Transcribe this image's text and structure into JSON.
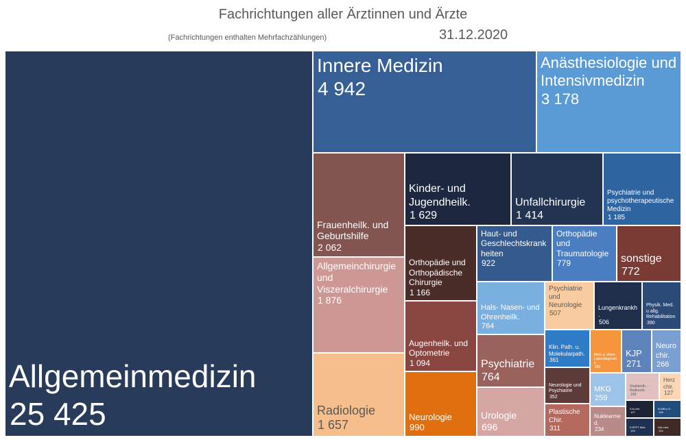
{
  "chart_data": {
    "type": "treemap",
    "title": "Fachrichtungen aller Ärztinnen und Ärzte",
    "subtitle": "(Fachrichtungen enthalten Mehrfachzählungen)",
    "date": "31.12.2020",
    "tiles": [
      {
        "label": "Allgemeinmedizin",
        "value": "25 425",
        "color": "#293b5b"
      },
      {
        "label": "Innere Medizin",
        "value": "4 942",
        "color": "#355f95"
      },
      {
        "label": "Anästhesiologie und Intensivmedizin",
        "value": "3 178",
        "color": "#5b9bd5"
      },
      {
        "label": "Frauenheilk. und Geburtshilfe",
        "value": "2 062",
        "color": "#835450"
      },
      {
        "label": "Allgemeinchirurgie und Viszeralchirurgie",
        "value": "1 876",
        "color": "#cd9894"
      },
      {
        "label": "Radiologie",
        "value": "1 657",
        "color": "#f5be8a"
      },
      {
        "label": "Kinder- und Jugendheilk.",
        "value": "1 629",
        "color": "#1d2840"
      },
      {
        "label": "Unfallchirurgie",
        "value": "1 414",
        "color": "#223452"
      },
      {
        "label": "Psychiatrie und psychotherapeutische Medizin",
        "value": "1 185",
        "color": "#2e64a0"
      },
      {
        "label": "Orthopädie und Orthopädische Chirurgie",
        "value": "1 166",
        "color": "#4a2d29"
      },
      {
        "label": "Augenheilk. und Optometrie",
        "value": "1 094",
        "color": "#8a4541"
      },
      {
        "label": "Neurologie",
        "value": "990",
        "color": "#df6f0f"
      },
      {
        "label": "Haut- und Geschlechtskrankheiten",
        "value": "922",
        "color": "#355b8e"
      },
      {
        "label": "Orthopädie und Traumatologie",
        "value": "779",
        "color": "#4a7ec0"
      },
      {
        "label": "sonstige",
        "value": "772",
        "color": "#7b3b35"
      },
      {
        "label": "Hals- Nasen- und Ohrenheilk.",
        "value": "764",
        "color": "#79b0e0"
      },
      {
        "label": "Psychiatrie und Neurologie",
        "value": "507",
        "color": "#f9cba0"
      },
      {
        "label": "Lungenkrankh.",
        "value": "506",
        "color": "#1f2e4a"
      },
      {
        "label": "Physik. Med. u allg. Rehabilitation",
        "value": "390",
        "color": "#2b4a75"
      },
      {
        "label": "Psychiatrie",
        "value": "764",
        "color": "#99625d"
      },
      {
        "label": "Urologie",
        "value": "696",
        "color": "#d6a6a5"
      },
      {
        "label": "Klin. Path. u. Molekularpath.",
        "value": "361",
        "color": "#2e7cc8"
      },
      {
        "label": "Med. u. chem. Labordiagnostik",
        "value": "282",
        "color": "#f5963c"
      },
      {
        "label": "KJP",
        "value": "271",
        "color": "#5e82bb"
      },
      {
        "label": "Neurochir.",
        "value": "266",
        "color": "#7aa0d2"
      },
      {
        "label": "Neurologie und Psychiatrie",
        "value": "352",
        "color": "#5d3b38"
      },
      {
        "label": "Plastische Chir.",
        "value": "311",
        "color": "#b4695f"
      },
      {
        "label": "MKG",
        "value": "259",
        "color": "#9dc4e8"
      },
      {
        "label": "Nuklearmed.",
        "value": "234",
        "color": "#b88a88"
      },
      {
        "label": "Strahlenth. - Radioonk.",
        "value": "199",
        "color": "#e2c0bf"
      },
      {
        "label": "Herzchir.",
        "value": "127",
        "color": "#fbd6b3"
      },
      {
        "label": "KJu.chir.",
        "value": "107",
        "color": "#1b2335"
      },
      {
        "label": "KLMB.u.H.",
        "value": "105",
        "color": "#214d7c"
      },
      {
        "label": "KJP/PT Med.",
        "value": "105",
        "color": "#1f3252"
      },
      {
        "label": "Arb.med.",
        "value": "102",
        "color": "#3f2a27"
      }
    ]
  }
}
